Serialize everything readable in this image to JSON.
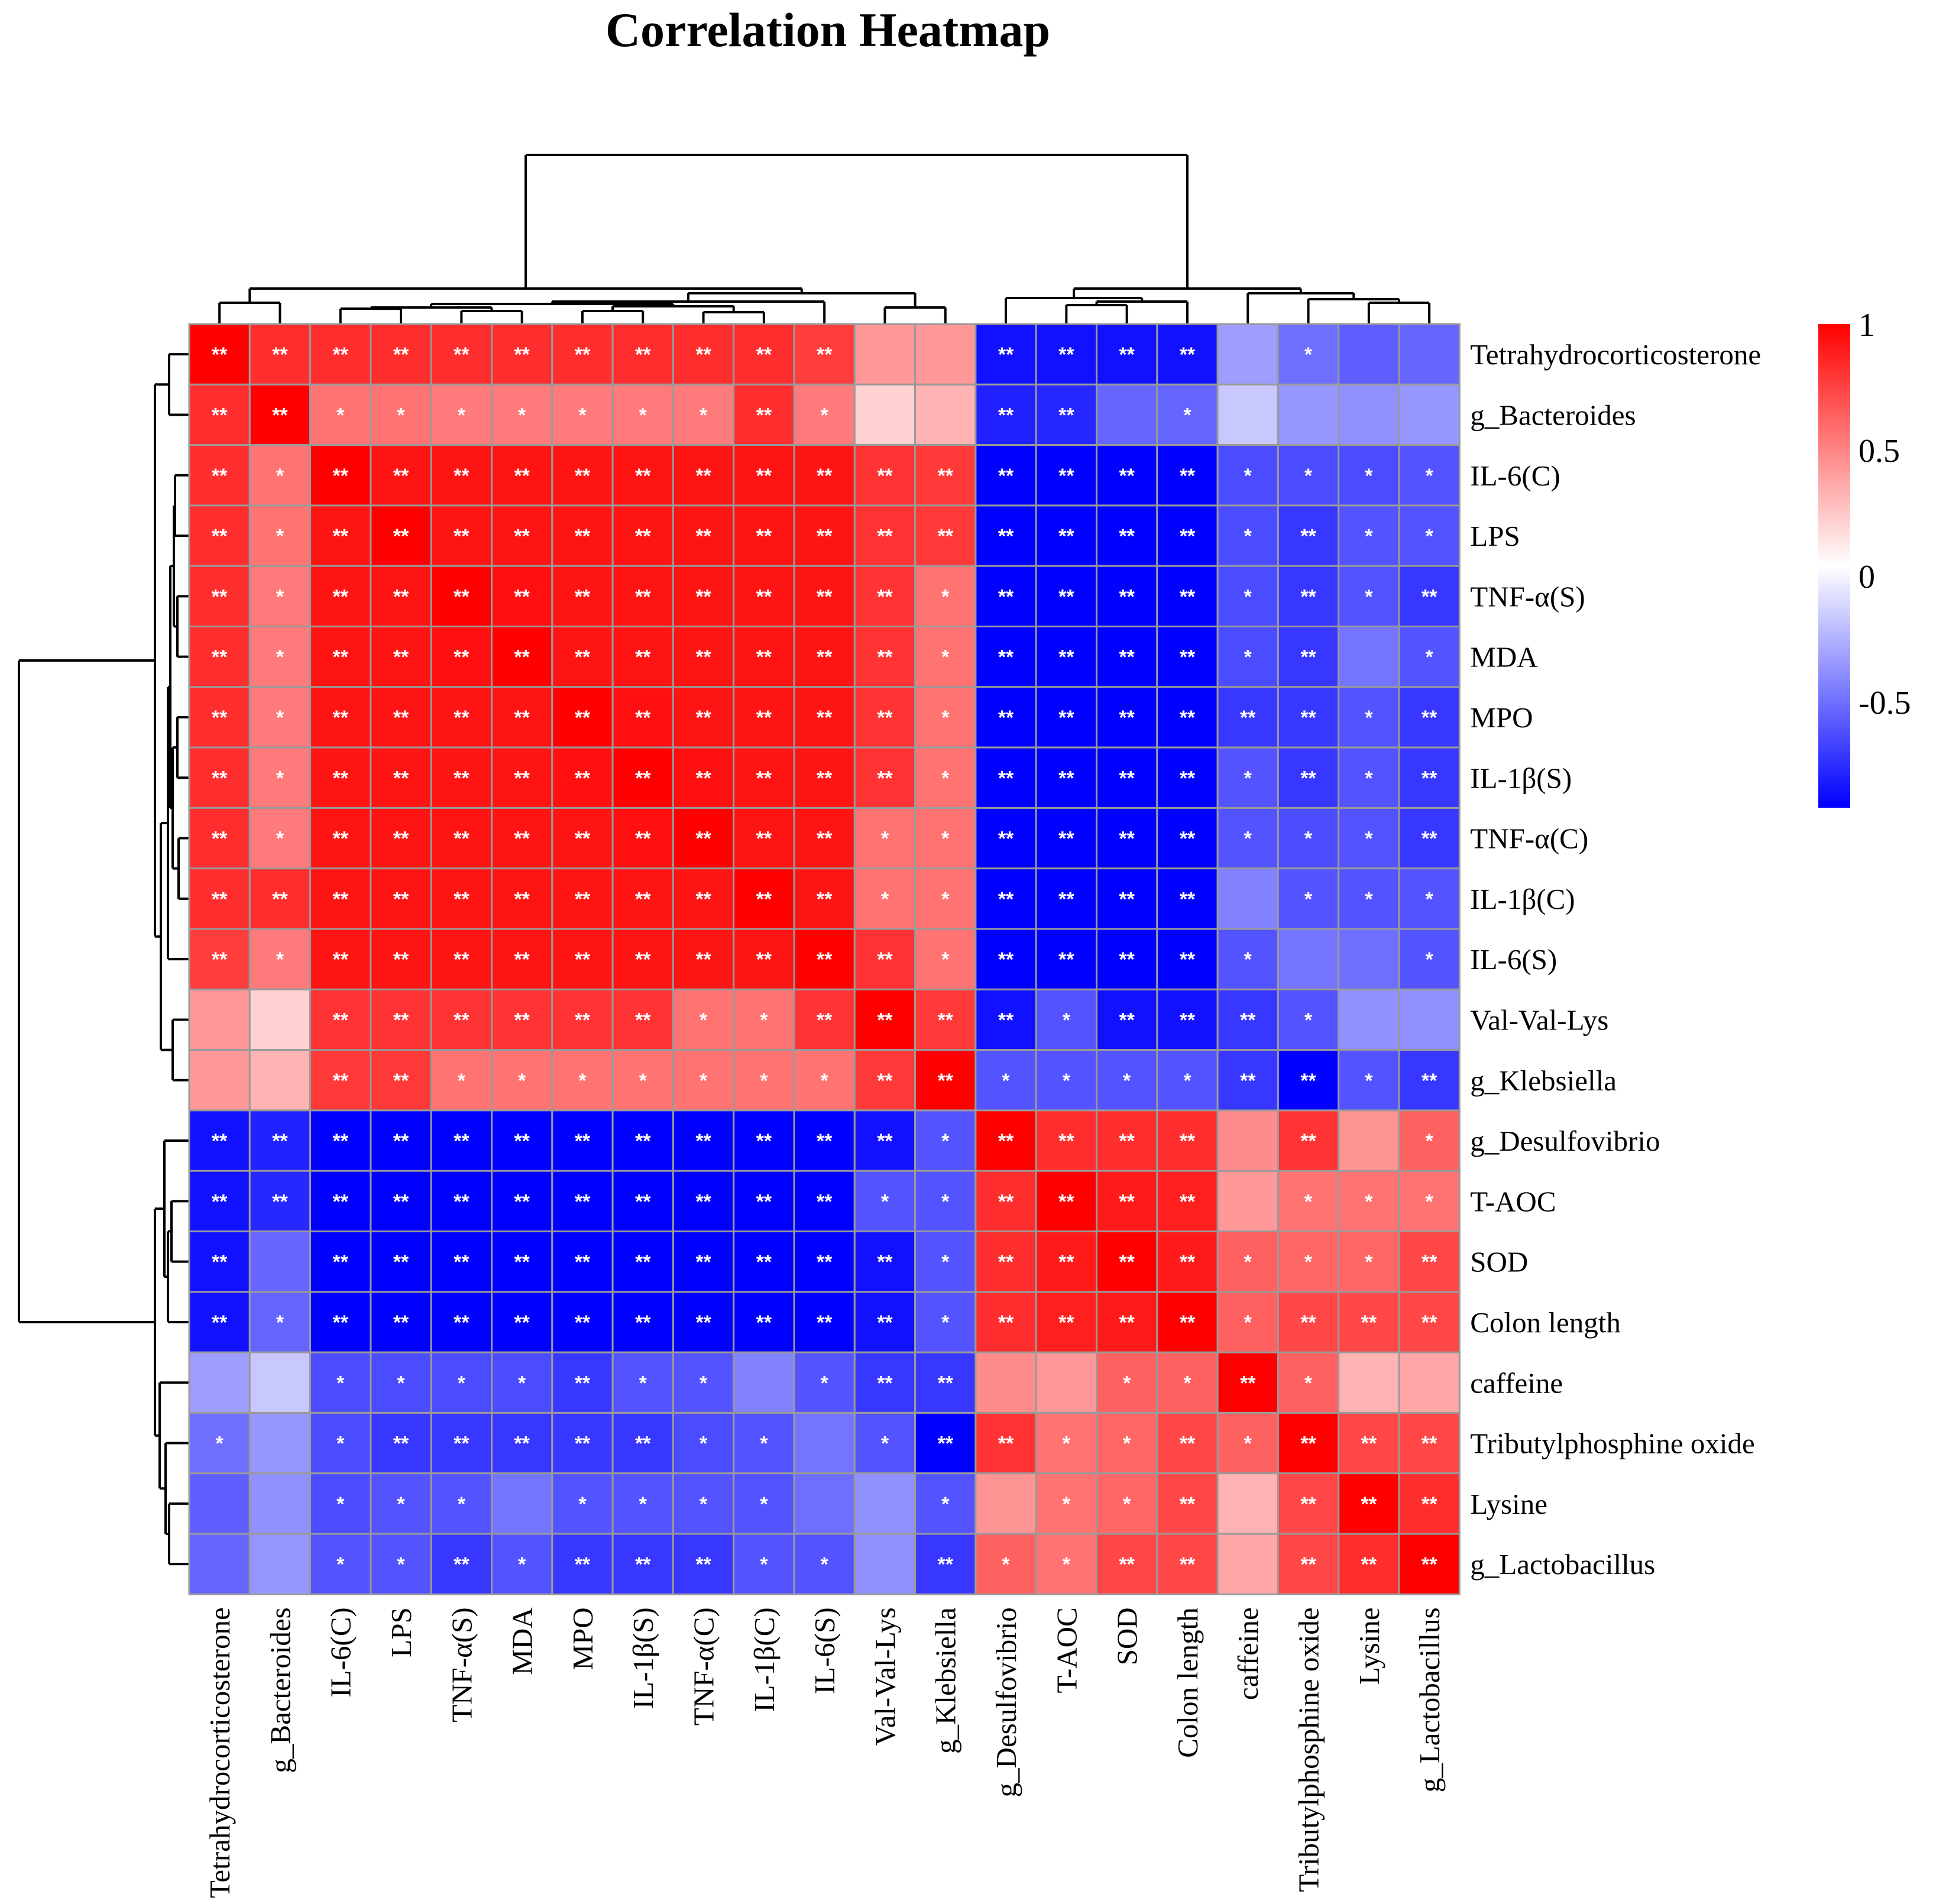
{
  "chart_data": {
    "type": "heatmap",
    "title": "Correlation Heatmap",
    "labels": [
      "Tetrahydrocorticosterone",
      "g_Bacteroides",
      "IL-6(C)",
      "LPS",
      "TNF-α(S)",
      "MDA",
      "MPO",
      "IL-1β(S)",
      "TNF-α(C)",
      "IL-1β(C)",
      "IL-6(S)",
      "Val-Val-Lys",
      "g_Klebsiella",
      "g_Desulfovibrio",
      "T-AOC",
      "SOD",
      "Colon length",
      "caffeine",
      "Tributylphosphine oxide",
      "Lysine",
      "g_Lactobacillus"
    ],
    "values": [
      [
        1.0,
        0.82,
        0.82,
        0.82,
        0.82,
        0.82,
        0.82,
        0.82,
        0.82,
        0.82,
        0.76,
        0.4,
        0.4,
        -0.86,
        -0.86,
        -0.86,
        -0.86,
        -0.35,
        -0.52,
        -0.58,
        -0.55
      ],
      [
        0.82,
        1.0,
        0.55,
        0.55,
        0.52,
        0.52,
        0.52,
        0.52,
        0.52,
        0.82,
        0.52,
        0.18,
        0.3,
        -0.8,
        -0.78,
        -0.55,
        -0.56,
        -0.2,
        -0.38,
        -0.4,
        -0.38
      ],
      [
        0.82,
        0.55,
        1.0,
        0.92,
        0.92,
        0.92,
        0.92,
        0.92,
        0.92,
        0.92,
        0.92,
        0.8,
        0.78,
        -0.92,
        -0.92,
        -0.92,
        -0.92,
        -0.65,
        -0.65,
        -0.65,
        -0.62
      ],
      [
        0.82,
        0.55,
        0.92,
        1.0,
        0.92,
        0.92,
        0.92,
        0.92,
        0.92,
        0.92,
        0.92,
        0.8,
        0.78,
        -0.92,
        -0.92,
        -0.92,
        -0.92,
        -0.65,
        -0.72,
        -0.62,
        -0.62
      ],
      [
        0.82,
        0.52,
        0.92,
        0.92,
        1.0,
        0.94,
        0.92,
        0.92,
        0.92,
        0.92,
        0.92,
        0.8,
        0.55,
        -0.92,
        -0.92,
        -0.92,
        -0.92,
        -0.65,
        -0.72,
        -0.62,
        -0.72
      ],
      [
        0.82,
        0.52,
        0.92,
        0.92,
        0.94,
        1.0,
        0.92,
        0.92,
        0.92,
        0.92,
        0.92,
        0.8,
        0.55,
        -0.92,
        -0.92,
        -0.92,
        -0.92,
        -0.65,
        -0.72,
        -0.5,
        -0.62
      ],
      [
        0.82,
        0.52,
        0.92,
        0.92,
        0.92,
        0.92,
        1.0,
        0.94,
        0.92,
        0.92,
        0.92,
        0.8,
        0.55,
        -0.92,
        -0.92,
        -0.92,
        -0.92,
        -0.72,
        -0.72,
        -0.62,
        -0.72
      ],
      [
        0.82,
        0.52,
        0.92,
        0.92,
        0.92,
        0.92,
        0.94,
        1.0,
        0.94,
        0.92,
        0.92,
        0.8,
        0.55,
        -0.92,
        -0.92,
        -0.92,
        -0.92,
        -0.62,
        -0.72,
        -0.62,
        -0.72
      ],
      [
        0.82,
        0.52,
        0.92,
        0.92,
        0.92,
        0.92,
        0.92,
        0.94,
        1.0,
        0.92,
        0.92,
        0.55,
        0.55,
        -0.92,
        -0.92,
        -0.92,
        -0.92,
        -0.62,
        -0.65,
        -0.62,
        -0.72
      ],
      [
        0.82,
        0.82,
        0.92,
        0.92,
        0.92,
        0.92,
        0.92,
        0.92,
        0.92,
        1.0,
        0.92,
        0.55,
        0.55,
        -0.92,
        -0.92,
        -0.92,
        -0.92,
        -0.45,
        -0.62,
        -0.62,
        -0.62
      ],
      [
        0.76,
        0.52,
        0.92,
        0.92,
        0.92,
        0.92,
        0.92,
        0.92,
        0.92,
        0.92,
        1.0,
        0.8,
        0.55,
        -0.92,
        -0.92,
        -0.92,
        -0.92,
        -0.62,
        -0.5,
        -0.52,
        -0.62
      ],
      [
        0.4,
        0.18,
        0.8,
        0.8,
        0.8,
        0.8,
        0.8,
        0.8,
        0.55,
        0.55,
        0.8,
        1.0,
        0.78,
        -0.86,
        -0.62,
        -0.86,
        -0.86,
        -0.72,
        -0.62,
        -0.4,
        -0.4
      ],
      [
        0.4,
        0.3,
        0.78,
        0.78,
        0.55,
        0.55,
        0.55,
        0.55,
        0.55,
        0.55,
        0.55,
        0.78,
        1.0,
        -0.62,
        -0.62,
        -0.62,
        -0.62,
        -0.72,
        -0.92,
        -0.62,
        -0.72
      ],
      [
        -0.86,
        -0.8,
        -0.92,
        -0.92,
        -0.92,
        -0.92,
        -0.92,
        -0.92,
        -0.92,
        -0.92,
        -0.92,
        -0.86,
        -0.62,
        1.0,
        0.82,
        0.82,
        0.82,
        0.45,
        0.8,
        0.42,
        0.62
      ],
      [
        -0.86,
        -0.78,
        -0.92,
        -0.92,
        -0.92,
        -0.92,
        -0.92,
        -0.92,
        -0.92,
        -0.92,
        -0.92,
        -0.62,
        -0.62,
        0.82,
        1.0,
        0.9,
        0.88,
        0.4,
        0.55,
        0.55,
        0.55
      ],
      [
        -0.86,
        -0.55,
        -0.92,
        -0.92,
        -0.92,
        -0.92,
        -0.92,
        -0.92,
        -0.92,
        -0.92,
        -0.92,
        -0.86,
        -0.62,
        0.82,
        0.9,
        1.0,
        0.9,
        0.62,
        0.6,
        0.6,
        0.72
      ],
      [
        -0.86,
        -0.56,
        -0.92,
        -0.92,
        -0.92,
        -0.92,
        -0.92,
        -0.92,
        -0.92,
        -0.92,
        -0.92,
        -0.86,
        -0.62,
        0.82,
        0.88,
        0.9,
        1.0,
        0.62,
        0.72,
        0.72,
        0.72
      ],
      [
        -0.35,
        -0.2,
        -0.65,
        -0.65,
        -0.65,
        -0.65,
        -0.72,
        -0.62,
        -0.62,
        -0.45,
        -0.62,
        -0.72,
        -0.72,
        0.45,
        0.4,
        0.62,
        0.62,
        1.0,
        0.62,
        0.3,
        0.35
      ],
      [
        -0.52,
        -0.38,
        -0.65,
        -0.72,
        -0.72,
        -0.72,
        -0.72,
        -0.72,
        -0.65,
        -0.62,
        -0.5,
        -0.62,
        -0.92,
        0.8,
        0.55,
        0.6,
        0.72,
        0.62,
        1.0,
        0.72,
        0.72
      ],
      [
        -0.58,
        -0.4,
        -0.65,
        -0.62,
        -0.62,
        -0.5,
        -0.62,
        -0.62,
        -0.62,
        -0.62,
        -0.52,
        -0.4,
        -0.62,
        0.42,
        0.55,
        0.6,
        0.72,
        0.3,
        0.72,
        1.0,
        0.82
      ],
      [
        -0.55,
        -0.38,
        -0.62,
        -0.62,
        -0.72,
        -0.62,
        -0.72,
        -0.72,
        -0.72,
        -0.62,
        -0.62,
        -0.4,
        -0.72,
        0.62,
        0.55,
        0.72,
        0.72,
        0.35,
        0.72,
        0.82,
        1.0
      ]
    ],
    "significance": [
      [
        "**",
        "**",
        "**",
        "**",
        "**",
        "**",
        "**",
        "**",
        "**",
        "**",
        "**",
        "",
        "",
        "**",
        "**",
        "**",
        "**",
        "",
        "*",
        "",
        ""
      ],
      [
        "**",
        "**",
        "*",
        "*",
        "*",
        "*",
        "*",
        "*",
        "*",
        "**",
        "*",
        "",
        "",
        "**",
        "**",
        "",
        "*",
        "",
        "",
        "",
        ""
      ],
      [
        "**",
        "*",
        "**",
        "**",
        "**",
        "**",
        "**",
        "**",
        "**",
        "**",
        "**",
        "**",
        "**",
        "**",
        "**",
        "**",
        "**",
        "*",
        "*",
        "*",
        "*"
      ],
      [
        "**",
        "*",
        "**",
        "**",
        "**",
        "**",
        "**",
        "**",
        "**",
        "**",
        "**",
        "**",
        "**",
        "**",
        "**",
        "**",
        "**",
        "*",
        "**",
        "*",
        "*"
      ],
      [
        "**",
        "*",
        "**",
        "**",
        "**",
        "**",
        "**",
        "**",
        "**",
        "**",
        "**",
        "**",
        "*",
        "**",
        "**",
        "**",
        "**",
        "*",
        "**",
        "*",
        "**"
      ],
      [
        "**",
        "*",
        "**",
        "**",
        "**",
        "**",
        "**",
        "**",
        "**",
        "**",
        "**",
        "**",
        "*",
        "**",
        "**",
        "**",
        "**",
        "*",
        "**",
        "",
        "*"
      ],
      [
        "**",
        "*",
        "**",
        "**",
        "**",
        "**",
        "**",
        "**",
        "**",
        "**",
        "**",
        "**",
        "*",
        "**",
        "**",
        "**",
        "**",
        "**",
        "**",
        "*",
        "**"
      ],
      [
        "**",
        "*",
        "**",
        "**",
        "**",
        "**",
        "**",
        "**",
        "**",
        "**",
        "**",
        "**",
        "*",
        "**",
        "**",
        "**",
        "**",
        "*",
        "**",
        "*",
        "**"
      ],
      [
        "**",
        "*",
        "**",
        "**",
        "**",
        "**",
        "**",
        "**",
        "**",
        "**",
        "**",
        "*",
        "*",
        "**",
        "**",
        "**",
        "**",
        "*",
        "*",
        "*",
        "**"
      ],
      [
        "**",
        "**",
        "**",
        "**",
        "**",
        "**",
        "**",
        "**",
        "**",
        "**",
        "**",
        "*",
        "*",
        "**",
        "**",
        "**",
        "**",
        "",
        "*",
        "*",
        "*"
      ],
      [
        "**",
        "*",
        "**",
        "**",
        "**",
        "**",
        "**",
        "**",
        "**",
        "**",
        "**",
        "**",
        "*",
        "**",
        "**",
        "**",
        "**",
        "*",
        "",
        "",
        "*"
      ],
      [
        "",
        "",
        "**",
        "**",
        "**",
        "**",
        "**",
        "**",
        "*",
        "*",
        "**",
        "**",
        "**",
        "**",
        "*",
        "**",
        "**",
        "**",
        "*",
        "",
        ""
      ],
      [
        "",
        "",
        "**",
        "**",
        "*",
        "*",
        "*",
        "*",
        "*",
        "*",
        "*",
        "**",
        "**",
        "*",
        "*",
        "*",
        "*",
        "**",
        "**",
        "*",
        "**"
      ],
      [
        "**",
        "**",
        "**",
        "**",
        "**",
        "**",
        "**",
        "**",
        "**",
        "**",
        "**",
        "**",
        "*",
        "**",
        "**",
        "**",
        "**",
        "",
        "**",
        "",
        "*"
      ],
      [
        "**",
        "**",
        "**",
        "**",
        "**",
        "**",
        "**",
        "**",
        "**",
        "**",
        "**",
        "*",
        "*",
        "**",
        "**",
        "**",
        "**",
        "",
        "*",
        "*",
        "*"
      ],
      [
        "**",
        "",
        "**",
        "**",
        "**",
        "**",
        "**",
        "**",
        "**",
        "**",
        "**",
        "**",
        "*",
        "**",
        "**",
        "**",
        "**",
        "*",
        "*",
        "*",
        "**"
      ],
      [
        "**",
        "*",
        "**",
        "**",
        "**",
        "**",
        "**",
        "**",
        "**",
        "**",
        "**",
        "**",
        "*",
        "**",
        "**",
        "**",
        "**",
        "*",
        "**",
        "**",
        "**"
      ],
      [
        "",
        "",
        "*",
        "*",
        "*",
        "*",
        "**",
        "*",
        "*",
        "",
        "*",
        "**",
        "**",
        "",
        "",
        "*",
        "*",
        "**",
        "*",
        "",
        ""
      ],
      [
        "*",
        "",
        "*",
        "**",
        "**",
        "**",
        "**",
        "**",
        "*",
        "*",
        "",
        "*",
        "**",
        "**",
        "*",
        "*",
        "**",
        "*",
        "**",
        "**",
        "**"
      ],
      [
        "",
        "",
        "*",
        "*",
        "*",
        "",
        "*",
        "*",
        "*",
        "*",
        "",
        "",
        "*",
        "",
        "*",
        "*",
        "**",
        "",
        "**",
        "**",
        "**"
      ],
      [
        "",
        "",
        "*",
        "*",
        "**",
        "*",
        "**",
        "**",
        "**",
        "*",
        "*",
        "",
        "**",
        "*",
        "*",
        "**",
        "**",
        "",
        "**",
        "**",
        "**"
      ]
    ],
    "colorbar": {
      "ticks": [
        1,
        0.5,
        0,
        -0.5
      ],
      "tick_labels": [
        "1",
        "0.5",
        "0",
        "-0.5"
      ],
      "range": [
        -0.92,
        1
      ]
    },
    "colors": {
      "high": "#ff0000",
      "mid": "#ffffff",
      "low": "#0000ff",
      "grid": "#9a9a9a"
    }
  }
}
